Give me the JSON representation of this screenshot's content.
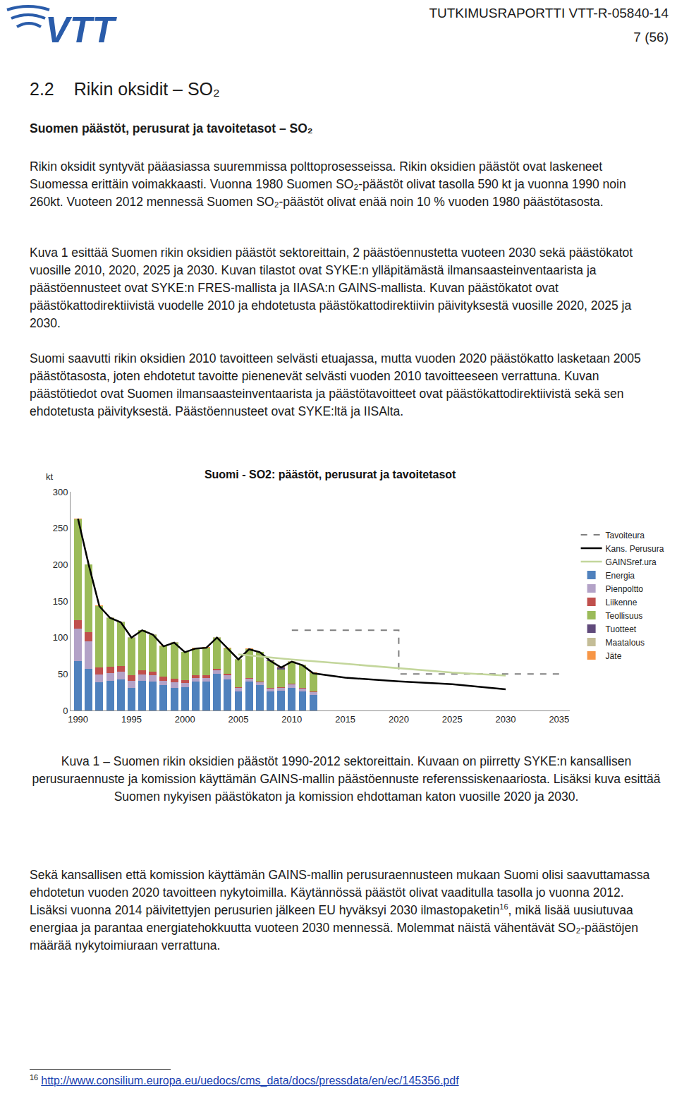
{
  "header": {
    "logo": "VTT",
    "report": "TUTKIMUSRAPORTTI VTT-R-05840-14",
    "page": "7 (56)"
  },
  "heading": {
    "number": "2.2",
    "text": "Rikin oksidit – SO₂"
  },
  "subheading": "Suomen päästöt, perusurat ja tavoitetasot – SO₂",
  "paragraphs_before": [
    "Rikin oksidit syntyvät pääasiassa suuremmissa polttoprosesseissa. Rikin oksidien päästöt ovat laskeneet Suomessa erittäin voimakkaasti. Vuonna 1980 Suomen SO₂-päästöt olivat tasolla 590 kt ja vuonna 1990 noin 260kt. Vuoteen 2012 mennessä Suomen SO₂-päästöt olivat enää noin 10 % vuoden 1980 päästötasosta.",
    "Kuva 1 esittää Suomen rikin oksidien päästöt sektoreittain, 2 päästöennustetta vuoteen 2030 sekä päästökatot vuosille 2010, 2020, 2025 ja 2030. Kuvan tilastot ovat SYKE:n ylläpitämästä ilmansaasteinventaarista ja päästöennusteet ovat SYKE:n FRES-mallista ja IIASA:n GAINS-mallista. Kuvan päästökatot ovat päästökattodirektiivistä vuodelle 2010 ja ehdotetusta päästökattodirektiivin päivityksestä vuosille 2020, 2025 ja 2030.",
    "Suomi saavutti rikin oksidien 2010 tavoitteen selvästi etuajassa, mutta vuoden 2020 päästökatto lasketaan 2005 päästötasosta, joten ehdotetut tavoitte pienenevät selvästi vuoden 2010 tavoitteeseen verrattuna. Kuvan päästötiedot ovat Suomen ilmansaasteinventaarista ja päästötavoitteet ovat päästökattodirektiivistä sekä sen ehdotetusta päivityksestä. Päästöennusteet ovat SYKE:ltä ja IISAlta."
  ],
  "chart_data": {
    "type": "bar",
    "stacked": true,
    "title": "Suomi - SO2: päästöt, perusurat ja tavoitetasot",
    "y_label": "kt",
    "xlim": [
      1989.3,
      2036
    ],
    "xticks": [
      1990,
      1995,
      2000,
      2005,
      2010,
      2015,
      2020,
      2025,
      2030,
      2035
    ],
    "ylim": [
      0,
      300
    ],
    "yticks": [
      0,
      50,
      100,
      150,
      200,
      250,
      300
    ],
    "grid": false,
    "legend": "right",
    "series": [
      {
        "name": "Jäte",
        "type": "bar",
        "color": "#F79646",
        "x": [
          1990,
          1991,
          1992,
          1993,
          1994,
          1995,
          1996,
          1997,
          1998,
          1999,
          2000,
          2001,
          2002,
          2003,
          2004,
          2005,
          2006,
          2007,
          2008,
          2009,
          2010,
          2011,
          2012
        ],
        "values": [
          0.3,
          0.3,
          0.3,
          0.3,
          0.3,
          0.3,
          0.3,
          0.3,
          0.3,
          0.3,
          0.3,
          0.3,
          0.3,
          0.3,
          0.3,
          0.3,
          0.3,
          0.3,
          0.3,
          0.3,
          0.3,
          0.3,
          0.3
        ]
      },
      {
        "name": "Maatalous",
        "type": "bar",
        "color": "#C4BD97",
        "x": [
          1990,
          1991,
          1992,
          1993,
          1994,
          1995,
          1996,
          1997,
          1998,
          1999,
          2000,
          2001,
          2002,
          2003,
          2004,
          2005,
          2006,
          2007,
          2008,
          2009,
          2010,
          2011,
          2012
        ],
        "values": [
          0.5,
          0.5,
          0.5,
          0.5,
          0.5,
          0.5,
          0.5,
          0.5,
          0.5,
          0.5,
          0.5,
          0.5,
          0.5,
          0.5,
          0.5,
          0.5,
          0.5,
          0.5,
          0.5,
          0.5,
          0.5,
          0.5,
          0.5
        ]
      },
      {
        "name": "Tuotteet",
        "type": "bar",
        "color": "#604A7B",
        "x": [
          1990,
          1991,
          1992,
          1993,
          1994,
          1995,
          1996,
          1997,
          1998,
          1999,
          2000,
          2001,
          2002,
          2003,
          2004,
          2005,
          2006,
          2007,
          2008,
          2009,
          2010,
          2011,
          2012
        ],
        "values": [
          0,
          0,
          0,
          0,
          0,
          0,
          0,
          0,
          0,
          0,
          0,
          0,
          0,
          0,
          0,
          0,
          0,
          0,
          1,
          3,
          0,
          0,
          0
        ]
      },
      {
        "name": "Teollisuus",
        "type": "bar",
        "color": "#9BBB59",
        "x": [
          1990,
          1991,
          1992,
          1993,
          1994,
          1995,
          1996,
          1997,
          1998,
          1999,
          2000,
          2001,
          2002,
          2003,
          2004,
          2005,
          2006,
          2007,
          2008,
          2009,
          2010,
          2011,
          2012
        ],
        "values": [
          138,
          93,
          84,
          67,
          60,
          52,
          55,
          51,
          42,
          49,
          38,
          37,
          38,
          43,
          35,
          38,
          39,
          40,
          37,
          24,
          30,
          31,
          25
        ]
      },
      {
        "name": "Liikenne",
        "type": "bar",
        "color": "#C0504D",
        "x": [
          1990,
          1991,
          1992,
          1993,
          1994,
          1995,
          1996,
          1997,
          1998,
          1999,
          2000,
          2001,
          2002,
          2003,
          2004,
          2005,
          2006,
          2007,
          2008,
          2009,
          2010,
          2011,
          2012
        ],
        "values": [
          12,
          12,
          10,
          9,
          8,
          7,
          6,
          5,
          5,
          5,
          4,
          3,
          3,
          2,
          2,
          1,
          1,
          1,
          1,
          1,
          1,
          1,
          1
        ]
      },
      {
        "name": "Pienpoltto",
        "type": "bar",
        "color": "#B3A2C7",
        "x": [
          1990,
          1991,
          1992,
          1993,
          1994,
          1995,
          1996,
          1997,
          1998,
          1999,
          2000,
          2001,
          2002,
          2003,
          2004,
          2005,
          2006,
          2007,
          2008,
          2009,
          2010,
          2011,
          2012
        ],
        "values": [
          44,
          38,
          10,
          10,
          10,
          10,
          8,
          8,
          6,
          8,
          6,
          5,
          5,
          5,
          5,
          5,
          4,
          4,
          4,
          4,
          5,
          4,
          4
        ]
      },
      {
        "name": "Energia",
        "type": "bar",
        "color": "#4F81BD",
        "x": [
          1990,
          1991,
          1992,
          1993,
          1994,
          1995,
          1996,
          1997,
          1998,
          1999,
          2000,
          2001,
          2002,
          2003,
          2004,
          2005,
          2006,
          2007,
          2008,
          2009,
          2010,
          2011,
          2012
        ],
        "values": [
          68,
          57,
          39,
          41,
          43,
          31,
          41,
          40,
          35,
          31,
          32,
          40,
          40,
          50,
          43,
          26,
          40,
          35,
          26,
          27,
          31,
          26,
          21
        ]
      },
      {
        "name": "GAINSref.ura",
        "type": "line",
        "color": "#C3D69B",
        "line_style": "solid",
        "x": [
          2005,
          2010,
          2015,
          2020,
          2025,
          2030
        ],
        "values": [
          77,
          70,
          64,
          58,
          52,
          48
        ]
      },
      {
        "name": "Kans. Perusura",
        "type": "line",
        "color": "#000000",
        "line_style": "solid",
        "x": [
          1990,
          1991,
          1992,
          1993,
          1994,
          1995,
          1996,
          1997,
          1998,
          1999,
          2000,
          2001,
          2002,
          2003,
          2004,
          2005,
          2006,
          2007,
          2008,
          2009,
          2010,
          2011,
          2012,
          2015,
          2020,
          2025,
          2030
        ],
        "values": [
          263,
          200,
          143,
          127,
          121,
          100,
          110,
          104,
          88,
          93,
          80,
          85,
          86,
          100,
          85,
          70,
          84,
          80,
          68,
          59,
          67,
          62,
          51,
          45,
          40,
          36,
          29
        ]
      },
      {
        "name": "Tavoiteura",
        "type": "line",
        "color": "#7F7F7F",
        "line_style": "dashed",
        "x": [
          2010,
          2020,
          2020,
          2035
        ],
        "values": [
          110,
          110,
          50,
          50
        ]
      }
    ]
  },
  "caption": "Kuva 1 – Suomen rikin oksidien päästöt 1990-2012 sektoreittain. Kuvaan on piirretty SYKE:n kansallisen perusuraennuste ja komission käyttämän GAINS-mallin päästöennuste referenssiskenaariosta. Lisäksi kuva esittää Suomen nykyisen päästökaton ja komission ehdottaman katon vuosille 2020 ja 2030.",
  "paragraphs_after": [
    [
      {
        "text": "Sekä kansallisen että komission käyttämän GAINS-mallin perusuraennusteen mukaan Suomi olisi saavuttamassa ehdotetun vuoden 2020 tavoitteen nykytoimilla. Käytännössä päästöt olivat vaaditulla tasolla jo vuonna 2012. Lisäksi vuonna 2014 päivitettyjen perusurien jälkeen EU hyväksyi 2030 ilmastopaketin"
      },
      {
        "sup": "16"
      },
      {
        "text": ", mikä lisää uusiutuvaa energiaa ja parantaa energiatehokkuutta vuoteen 2030 mennessä. Molemmat näistä vähentävät SO₂-päästöjen määrää nykytoimiuraan verrattuna."
      }
    ]
  ],
  "footnote": {
    "mark": "16",
    "text": "http://www.consilium.europa.eu/uedocs/cms_data/docs/pressdata/en/ec/145356.pdf"
  }
}
